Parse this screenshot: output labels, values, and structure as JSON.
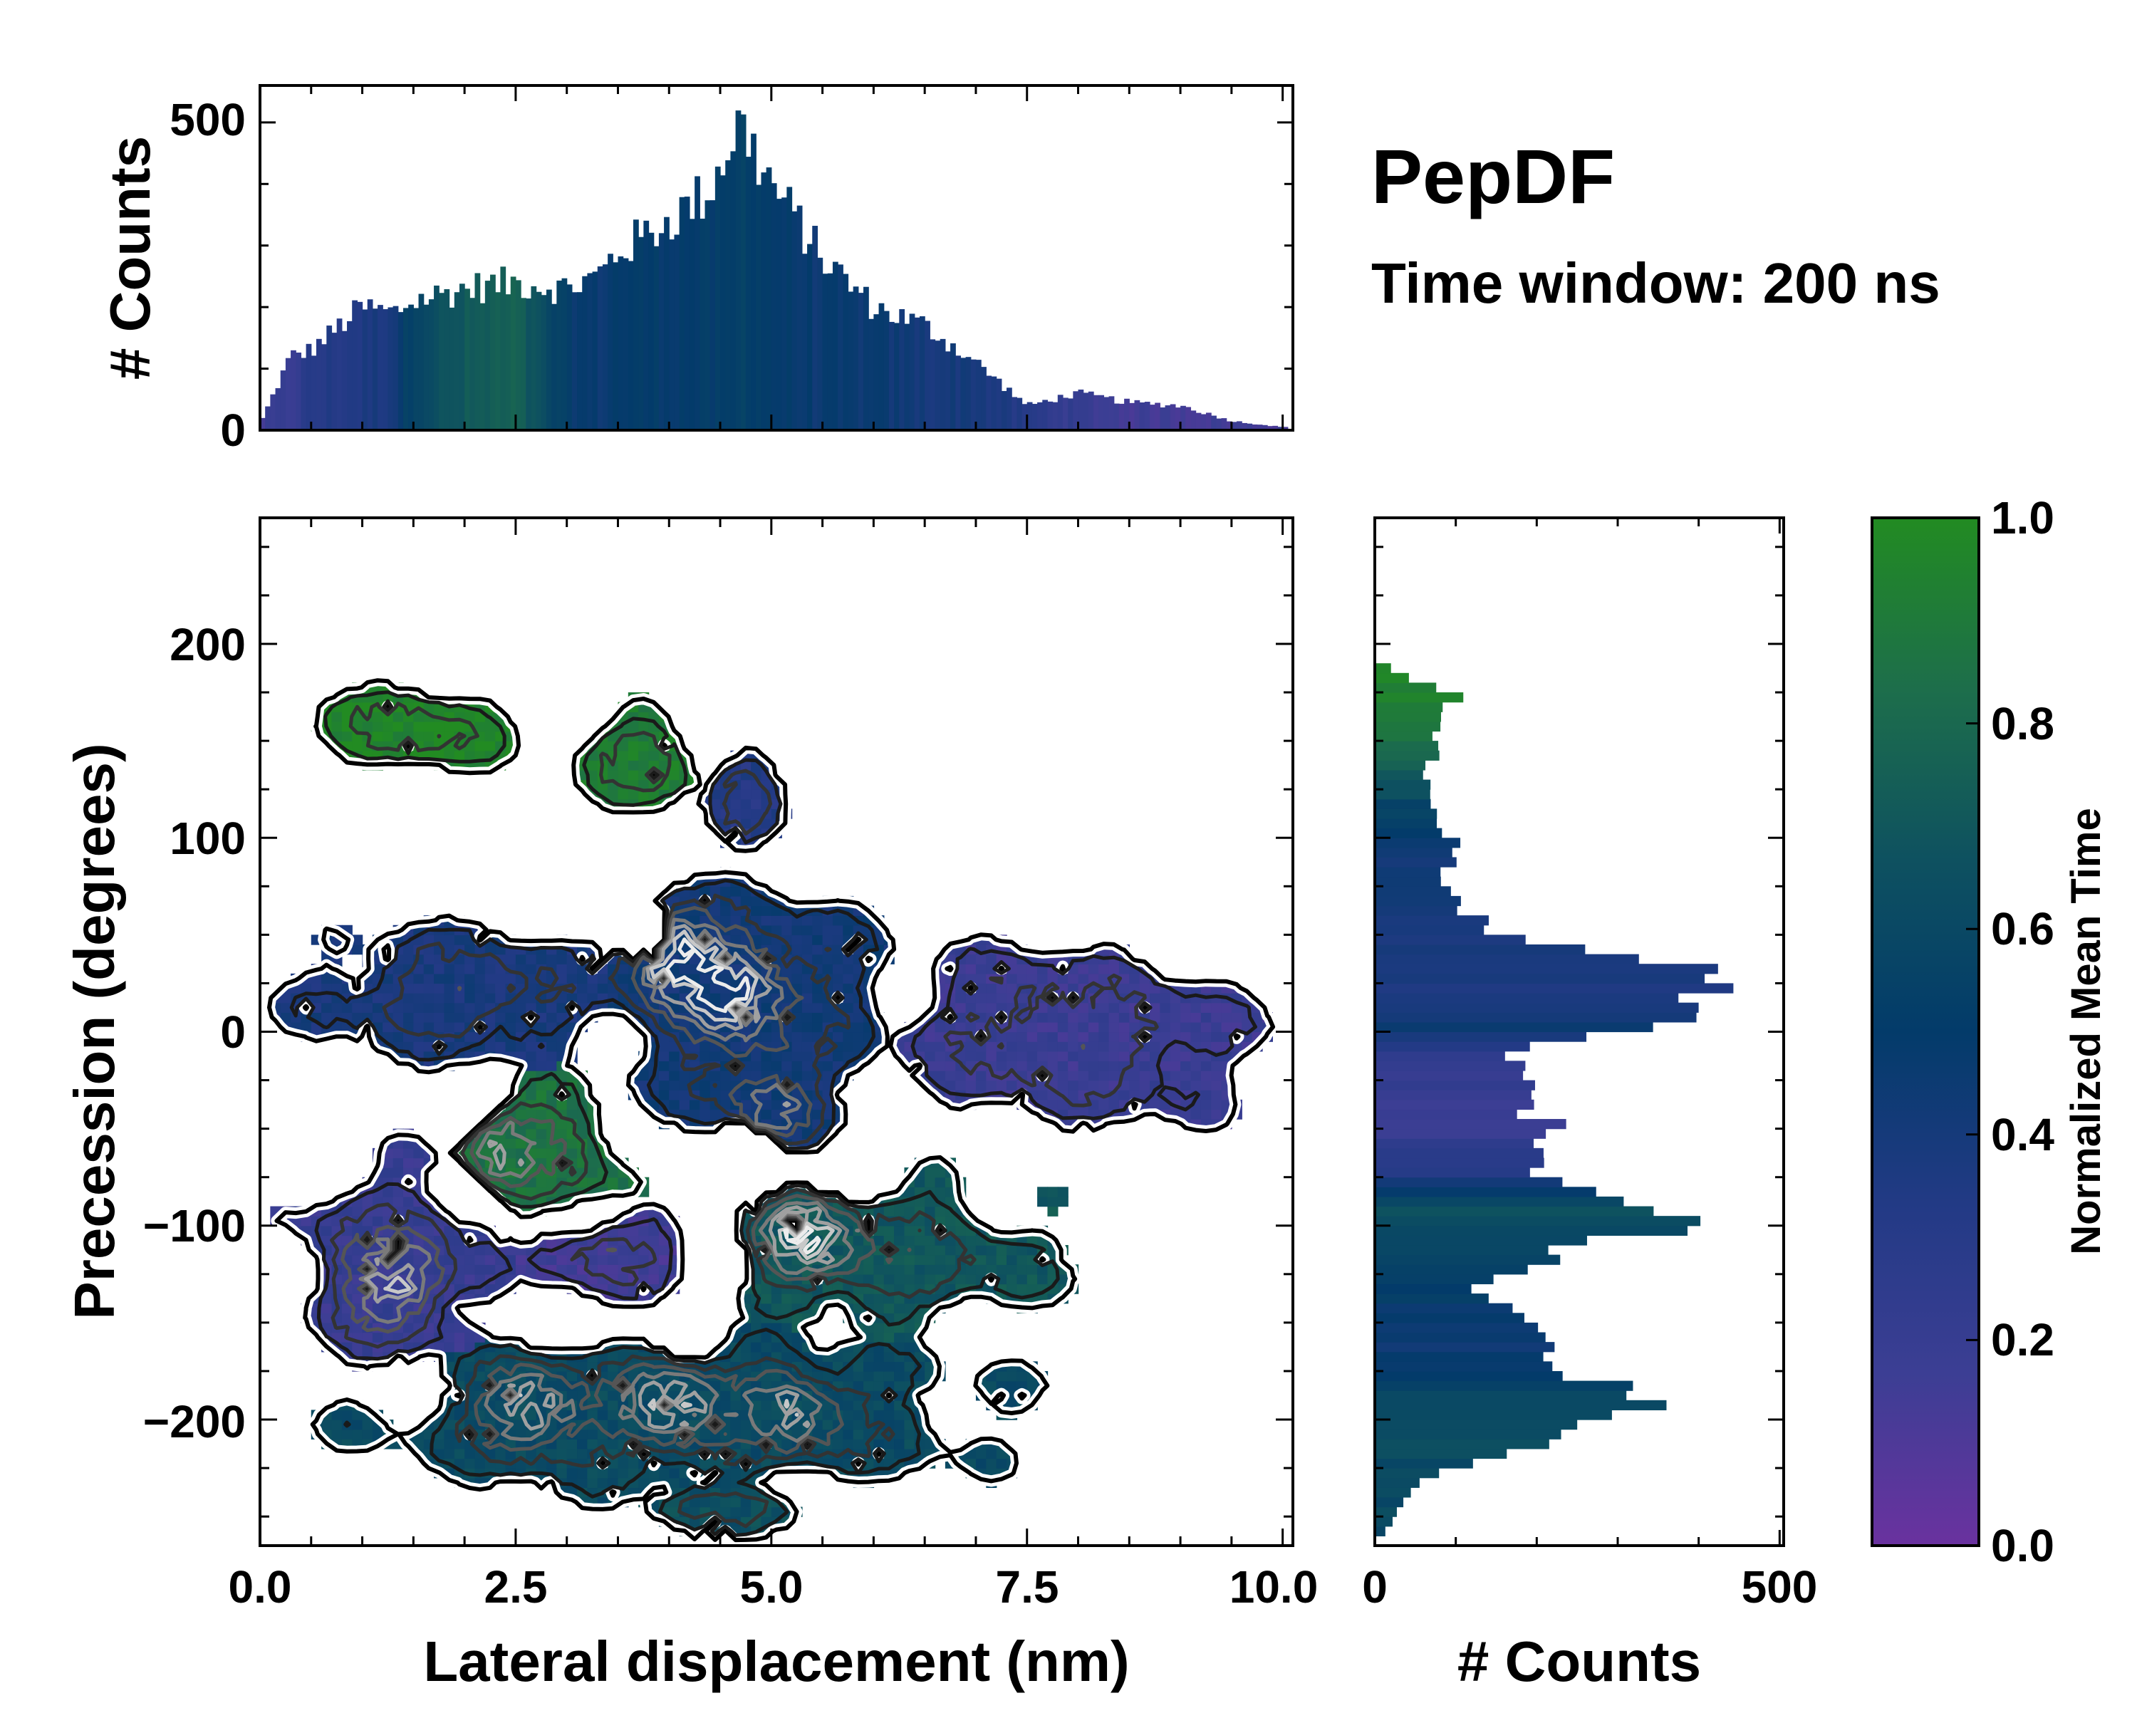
{
  "chart_data": [
    {
      "id": "top-histogram",
      "type": "bar",
      "title": "",
      "xlabel": "",
      "ylabel": "# Counts",
      "xlim": [
        0,
        10.1
      ],
      "ylim": [
        0,
        560
      ],
      "yticks": [
        0,
        500
      ],
      "ytick_labels": [
        "0",
        "500"
      ],
      "bin_width": 0.05,
      "x_anchor": [
        0.0,
        0.3,
        0.5,
        1.0,
        1.3,
        1.5,
        2.0,
        2.5,
        3.0,
        3.3,
        3.5,
        4.0,
        4.4,
        4.6,
        4.7,
        4.8,
        5.0,
        5.5,
        6.0,
        6.5,
        7.0,
        7.5,
        8.0,
        8.5,
        9.0,
        9.5,
        10.0
      ],
      "count_anchor": [
        10,
        120,
        130,
        200,
        190,
        210,
        230,
        240,
        230,
        250,
        290,
        340,
        390,
        470,
        500,
        460,
        400,
        280,
        200,
        170,
        110,
        40,
        60,
        45,
        40,
        15,
        5
      ],
      "color_anchor": [
        0.15,
        0.2,
        0.3,
        0.35,
        0.4,
        0.6,
        0.7,
        0.75,
        0.5,
        0.45,
        0.5,
        0.5,
        0.5,
        0.5,
        0.55,
        0.55,
        0.5,
        0.45,
        0.45,
        0.4,
        0.4,
        0.3,
        0.2,
        0.15,
        0.15,
        0.15,
        0.15
      ]
    },
    {
      "id": "right-histogram",
      "type": "bar",
      "orientation": "horizontal",
      "xlabel": "# Counts",
      "xlim": [
        0,
        505
      ],
      "xticks": [
        0,
        500
      ],
      "xtick_labels": [
        "0",
        "500"
      ],
      "ylim": [
        -265,
        265
      ],
      "bin_width": 5,
      "y_anchor": [
        -255,
        -230,
        -200,
        -190,
        -170,
        -150,
        -130,
        -110,
        -100,
        -90,
        -70,
        -50,
        -30,
        -10,
        0,
        10,
        25,
        35,
        50,
        70,
        100,
        120,
        140,
        160,
        175,
        185
      ],
      "count_anchor": [
        15,
        60,
        300,
        340,
        180,
        220,
        120,
        250,
        400,
        300,
        180,
        210,
        200,
        150,
        350,
        400,
        460,
        350,
        150,
        90,
        95,
        60,
        70,
        80,
        100,
        20
      ],
      "color_anchor": [
        0.6,
        0.62,
        0.62,
        0.6,
        0.45,
        0.45,
        0.55,
        0.6,
        0.6,
        0.65,
        0.3,
        0.2,
        0.2,
        0.3,
        0.45,
        0.35,
        0.35,
        0.4,
        0.4,
        0.4,
        0.45,
        0.6,
        0.8,
        0.9,
        0.95,
        0.95
      ]
    },
    {
      "id": "main-heatmap",
      "type": "heatmap",
      "xlabel": "Lateral displacement (nm)",
      "ylabel": "Precession (degrees)",
      "xlim": [
        0,
        10.1
      ],
      "ylim": [
        -265,
        265
      ],
      "xticks": [
        0,
        2.5,
        5,
        7.5,
        10
      ],
      "xtick_labels": [
        "0.0",
        "2.5",
        "5.0",
        "7.5",
        "10.0"
      ],
      "yticks": [
        -200,
        -100,
        0,
        100,
        200
      ],
      "ytick_labels": [
        "−200",
        "−100",
        "0",
        "100",
        "200"
      ],
      "cell_size": [
        0.1,
        5
      ],
      "regions": [
        {
          "name": "upper-left-green",
          "x": [
            0.4,
            2.6
          ],
          "y": [
            130,
            185
          ],
          "mean_time": 0.97
        },
        {
          "name": "top-central-green",
          "x": [
            3.0,
            4.5
          ],
          "y": [
            110,
            170
          ],
          "mean_time": 0.92
        },
        {
          "name": "top-central-blue",
          "x": [
            4.3,
            5.2
          ],
          "y": [
            90,
            150
          ],
          "mean_time": 0.32
        },
        {
          "name": "left-blue",
          "x": [
            0.1,
            3.8
          ],
          "y": [
            -20,
            60
          ],
          "mean_time": 0.38
        },
        {
          "name": "central-blue",
          "x": [
            3.0,
            6.5
          ],
          "y": [
            -60,
            90
          ],
          "mean_time": 0.42
        },
        {
          "name": "right-purple",
          "x": [
            5.8,
            10.0
          ],
          "y": [
            -60,
            55
          ],
          "mean_time": 0.18
        },
        {
          "name": "central-green",
          "x": [
            1.8,
            3.8
          ],
          "y": [
            -100,
            -20
          ],
          "mean_time": 0.86
        },
        {
          "name": "left-purple",
          "x": [
            0.1,
            2.5
          ],
          "y": [
            -180,
            -60
          ],
          "mean_time": 0.2
        },
        {
          "name": "mid-purple",
          "x": [
            2.5,
            4.4
          ],
          "y": [
            -140,
            -90
          ],
          "mean_time": 0.15
        },
        {
          "name": "lower-central-green",
          "x": [
            4.3,
            8.1
          ],
          "y": [
            -160,
            -70
          ],
          "mean_time": 0.7
        },
        {
          "name": "bottom-teal",
          "x": [
            0.6,
            7.8
          ],
          "y": [
            -245,
            -150
          ],
          "mean_time": 0.62
        },
        {
          "name": "bottom-spur",
          "x": [
            3.6,
            5.5
          ],
          "y": [
            -262,
            -230
          ],
          "mean_time": 0.65
        }
      ],
      "hotspots": [
        {
          "x": 4.0,
          "y": 40,
          "weight": 1.0
        },
        {
          "x": 4.6,
          "y": 20,
          "weight": 0.8
        },
        {
          "x": 5.0,
          "y": -40,
          "weight": 0.7
        },
        {
          "x": 5.3,
          "y": -105,
          "weight": 0.95
        },
        {
          "x": 2.6,
          "y": -195,
          "weight": 0.75
        },
        {
          "x": 4.0,
          "y": -190,
          "weight": 0.6
        },
        {
          "x": 1.3,
          "y": -130,
          "weight": 0.6
        },
        {
          "x": 2.3,
          "y": -60,
          "weight": 0.55
        },
        {
          "x": 5.2,
          "y": -195,
          "weight": 0.55
        }
      ]
    },
    {
      "id": "colorbar",
      "type": "colorbar",
      "label": "Normalized Mean Time",
      "range": [
        0.0,
        1.0
      ],
      "ticks": [
        0.0,
        0.2,
        0.4,
        0.6,
        0.8,
        1.0
      ],
      "tick_labels": [
        "0.0",
        "0.2",
        "0.4",
        "0.6",
        "0.8",
        "1.0"
      ],
      "stops": [
        "#6a329f",
        "#3c3e94",
        "#223a85",
        "#033b6a",
        "#0e5160",
        "#1d6e4b",
        "#228b22"
      ]
    }
  ],
  "annotations": {
    "title": "PepDF",
    "subtitle": "Time window: 200 ns"
  },
  "colors": {
    "frame": "#000000",
    "background": "#ffffff"
  }
}
